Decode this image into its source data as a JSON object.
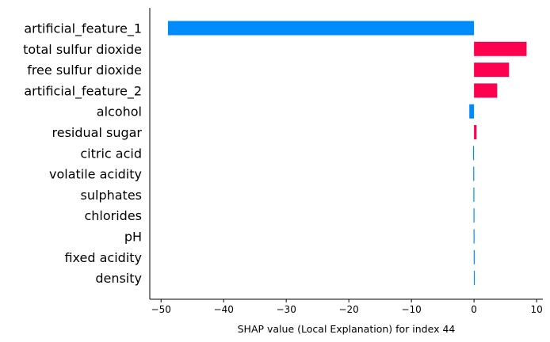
{
  "chart_data": {
    "type": "bar",
    "orientation": "horizontal",
    "title": "",
    "xlabel": "SHAP value (Local Explanation) for index 44",
    "ylabel": "",
    "xlim": [
      -51.8,
      11.0
    ],
    "xticks": [
      -50,
      -40,
      -30,
      -20,
      -10,
      0,
      10
    ],
    "xtick_labels": [
      "−50",
      "−40",
      "−30",
      "−20",
      "−10",
      "0",
      "10"
    ],
    "grid": false,
    "legend": "none",
    "categories": [
      "artificial_feature_1",
      "total sulfur dioxide",
      "free sulfur dioxide",
      "artificial_feature_2",
      "alcohol",
      "residual sugar",
      "citric acid",
      "volatile acidity",
      "sulphates",
      "chlorides",
      "pH",
      "fixed acidity",
      "density"
    ],
    "values": [
      -48.9,
      8.4,
      5.6,
      3.7,
      -0.75,
      0.4,
      -0.15,
      -0.12,
      -0.1,
      -0.08,
      -0.07,
      -0.05,
      -0.03
    ],
    "colors": {
      "positive": "#ff0051",
      "negative": "#008bfb"
    }
  }
}
